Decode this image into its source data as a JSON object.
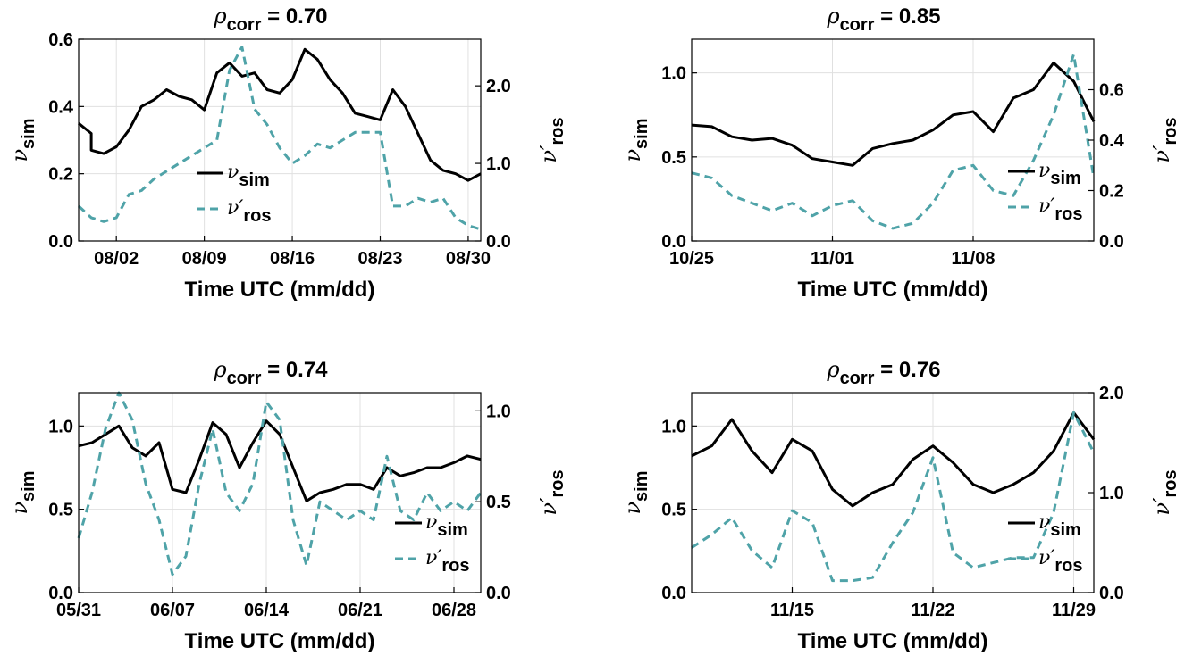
{
  "chart_data": [
    {
      "type": "line",
      "title": {
        "symbol": "ρ",
        "sub": "corr",
        "text": " = 0.70"
      },
      "xlabel": "Time UTC (mm/dd)",
      "xlim": [
        "07/30",
        "08/31"
      ],
      "xticks": [
        {
          "date": "08/02",
          "label": "08/02"
        },
        {
          "date": "08/09",
          "label": "08/09"
        },
        {
          "date": "08/16",
          "label": "08/16"
        },
        {
          "date": "08/23",
          "label": "08/23"
        },
        {
          "date": "08/30",
          "label": "08/30"
        }
      ],
      "ylabel_left": {
        "symbol": "ν",
        "sub": "sim"
      },
      "ylim_left": [
        0,
        0.6
      ],
      "yticks_left": [
        0,
        0.2,
        0.4,
        0.6
      ],
      "yticklabels_left": [
        "0.0",
        "0.2",
        "0.4",
        "0.6"
      ],
      "ylabel_right": {
        "symbol": "ν′",
        "sub": "ros"
      },
      "ylim_right": [
        0,
        2.6
      ],
      "yticks_right": [
        0,
        1,
        2
      ],
      "yticklabels_right": [
        "0.0",
        "1.0",
        "2.0"
      ],
      "grid": true,
      "legend": "center-bottom",
      "series": [
        {
          "name": "sim",
          "axis": "left",
          "color": "#000000",
          "style": "solid",
          "x": [
            "07/30",
            "07/31",
            "07/31",
            "08/01",
            "08/02",
            "08/03",
            "08/04",
            "08/05",
            "08/06",
            "08/07",
            "08/08",
            "08/09",
            "08/10",
            "08/11",
            "08/12",
            "08/13",
            "08/14",
            "08/15",
            "08/16",
            "08/17",
            "08/18",
            "08/19",
            "08/20",
            "08/21",
            "08/22",
            "08/23",
            "08/24",
            "08/25",
            "08/26",
            "08/27",
            "08/28",
            "08/29",
            "08/30",
            "08/31"
          ],
          "y": [
            0.35,
            0.32,
            0.27,
            0.26,
            0.28,
            0.33,
            0.4,
            0.42,
            0.45,
            0.43,
            0.42,
            0.39,
            0.5,
            0.53,
            0.49,
            0.5,
            0.45,
            0.44,
            0.48,
            0.57,
            0.54,
            0.48,
            0.44,
            0.38,
            0.37,
            0.36,
            0.45,
            0.4,
            0.32,
            0.24,
            0.21,
            0.2,
            0.18,
            0.2
          ]
        },
        {
          "name": "ros",
          "axis": "right",
          "color": "#4fa3a8",
          "style": "dashed",
          "x": [
            "07/30",
            "07/31",
            "08/01",
            "08/02",
            "08/03",
            "08/04",
            "08/05",
            "08/06",
            "08/07",
            "08/08",
            "08/09",
            "08/10",
            "08/11",
            "08/12",
            "08/13",
            "08/14",
            "08/15",
            "08/16",
            "08/17",
            "08/18",
            "08/19",
            "08/20",
            "08/21",
            "08/22",
            "08/23",
            "08/24",
            "08/25",
            "08/26",
            "08/27",
            "08/28",
            "08/29",
            "08/30",
            "08/31"
          ],
          "y": [
            0.45,
            0.3,
            0.25,
            0.3,
            0.6,
            0.65,
            0.8,
            0.9,
            1.0,
            1.1,
            1.2,
            1.3,
            2.2,
            2.5,
            1.7,
            1.5,
            1.2,
            1.0,
            1.1,
            1.25,
            1.2,
            1.3,
            1.4,
            1.4,
            1.4,
            0.45,
            0.45,
            0.55,
            0.5,
            0.55,
            0.3,
            0.2,
            0.15
          ]
        }
      ]
    },
    {
      "type": "line",
      "title": {
        "symbol": "ρ",
        "sub": "corr",
        "text": " = 0.85"
      },
      "xlabel": "Time UTC (mm/dd)",
      "xlim": [
        "10/25",
        "11/14"
      ],
      "xticks": [
        {
          "date": "10/25",
          "label": "10/25"
        },
        {
          "date": "11/01",
          "label": "11/01"
        },
        {
          "date": "11/08",
          "label": "11/08"
        }
      ],
      "ylabel_left": {
        "symbol": "ν",
        "sub": "sim"
      },
      "ylim_left": [
        0,
        1.2
      ],
      "yticks_left": [
        0,
        0.5,
        1.0
      ],
      "yticklabels_left": [
        "0.0",
        "0.5",
        "1.0"
      ],
      "ylabel_right": {
        "symbol": "ν′",
        "sub": "ros"
      },
      "ylim_right": [
        0,
        0.8
      ],
      "yticks_right": [
        0,
        0.2,
        0.4,
        0.6
      ],
      "yticklabels_right": [
        "0.0",
        "0.2",
        "0.4",
        "0.6"
      ],
      "grid": true,
      "legend": "right",
      "series": [
        {
          "name": "sim",
          "axis": "left",
          "color": "#000000",
          "style": "solid",
          "x": [
            "10/25",
            "10/26",
            "10/27",
            "10/28",
            "10/29",
            "10/30",
            "10/31",
            "11/01",
            "11/02",
            "11/03",
            "11/04",
            "11/05",
            "11/06",
            "11/07",
            "11/08",
            "11/09",
            "11/10",
            "11/11",
            "11/12",
            "11/13",
            "11/14"
          ],
          "y": [
            0.69,
            0.68,
            0.62,
            0.6,
            0.61,
            0.57,
            0.49,
            0.47,
            0.45,
            0.55,
            0.58,
            0.6,
            0.66,
            0.75,
            0.77,
            0.65,
            0.85,
            0.9,
            1.06,
            0.95,
            0.71
          ]
        },
        {
          "name": "ros",
          "axis": "right",
          "color": "#4fa3a8",
          "style": "dashed",
          "x": [
            "10/25",
            "10/26",
            "10/27",
            "10/28",
            "10/29",
            "10/30",
            "10/31",
            "11/01",
            "11/02",
            "11/03",
            "11/04",
            "11/05",
            "11/06",
            "11/07",
            "11/08",
            "11/09",
            "11/10",
            "11/11",
            "11/12",
            "11/13",
            "11/14"
          ],
          "y": [
            0.27,
            0.25,
            0.18,
            0.15,
            0.12,
            0.15,
            0.1,
            0.14,
            0.16,
            0.08,
            0.05,
            0.07,
            0.15,
            0.28,
            0.3,
            0.2,
            0.18,
            0.32,
            0.5,
            0.74,
            0.25
          ]
        }
      ]
    },
    {
      "type": "line",
      "title": {
        "symbol": "ρ",
        "sub": "corr",
        "text": " = 0.74"
      },
      "xlabel": "Time UTC (mm/dd)",
      "xlim": [
        "05/31",
        "06/30"
      ],
      "xticks": [
        {
          "date": "05/31",
          "label": "05/31"
        },
        {
          "date": "06/07",
          "label": "06/07"
        },
        {
          "date": "06/14",
          "label": "06/14"
        },
        {
          "date": "06/21",
          "label": "06/21"
        },
        {
          "date": "06/28",
          "label": "06/28"
        }
      ],
      "ylabel_left": {
        "symbol": "ν",
        "sub": "sim"
      },
      "ylim_left": [
        0,
        1.2
      ],
      "yticks_left": [
        0,
        0.5,
        1.0
      ],
      "yticklabels_left": [
        "0.0",
        "0.5",
        "1.0"
      ],
      "ylabel_right": {
        "symbol": "ν′",
        "sub": "ros"
      },
      "ylim_right": [
        0,
        1.1
      ],
      "yticks_right": [
        0,
        0.5,
        1.0
      ],
      "yticklabels_right": [
        "0.0",
        "0.5",
        "1.0"
      ],
      "grid": true,
      "legend": "right",
      "series": [
        {
          "name": "sim",
          "axis": "left",
          "color": "#000000",
          "style": "solid",
          "x": [
            "05/31",
            "06/01",
            "06/02",
            "06/03",
            "06/04",
            "06/05",
            "06/06",
            "06/07",
            "06/08",
            "06/09",
            "06/10",
            "06/11",
            "06/12",
            "06/13",
            "06/14",
            "06/15",
            "06/16",
            "06/17",
            "06/18",
            "06/19",
            "06/20",
            "06/21",
            "06/22",
            "06/23",
            "06/24",
            "06/25",
            "06/26",
            "06/27",
            "06/28",
            "06/29",
            "06/30"
          ],
          "y": [
            0.88,
            0.9,
            0.95,
            1.0,
            0.87,
            0.82,
            0.9,
            0.62,
            0.6,
            0.8,
            1.02,
            0.95,
            0.75,
            0.9,
            1.03,
            0.95,
            0.75,
            0.55,
            0.6,
            0.62,
            0.65,
            0.65,
            0.62,
            0.75,
            0.7,
            0.72,
            0.75,
            0.75,
            0.78,
            0.82,
            0.8
          ]
        },
        {
          "name": "ros",
          "axis": "right",
          "color": "#4fa3a8",
          "style": "dashed",
          "x": [
            "05/31",
            "06/01",
            "06/02",
            "06/03",
            "06/04",
            "06/05",
            "06/06",
            "06/07",
            "06/08",
            "06/09",
            "06/10",
            "06/11",
            "06/12",
            "06/13",
            "06/14",
            "06/15",
            "06/16",
            "06/17",
            "06/18",
            "06/19",
            "06/20",
            "06/21",
            "06/22",
            "06/23",
            "06/24",
            "06/25",
            "06/26",
            "06/27",
            "06/28",
            "06/29",
            "06/30"
          ],
          "y": [
            0.3,
            0.55,
            0.9,
            1.1,
            0.95,
            0.6,
            0.4,
            0.1,
            0.2,
            0.6,
            0.9,
            0.55,
            0.45,
            0.6,
            1.05,
            0.95,
            0.4,
            0.15,
            0.5,
            0.45,
            0.4,
            0.45,
            0.4,
            0.75,
            0.45,
            0.4,
            0.55,
            0.45,
            0.5,
            0.45,
            0.55
          ]
        }
      ]
    },
    {
      "type": "line",
      "title": {
        "symbol": "ρ",
        "sub": "corr",
        "text": " = 0.76"
      },
      "xlabel": "Time UTC (mm/dd)",
      "xlim": [
        "11/10",
        "11/30"
      ],
      "xticks": [
        {
          "date": "11/15",
          "label": "11/15"
        },
        {
          "date": "11/22",
          "label": "11/22"
        },
        {
          "date": "11/29",
          "label": "11/29"
        }
      ],
      "ylabel_left": {
        "symbol": "ν",
        "sub": "sim"
      },
      "ylim_left": [
        0,
        1.2
      ],
      "yticks_left": [
        0,
        0.5,
        1.0
      ],
      "yticklabels_left": [
        "0.0",
        "0.5",
        "1.0"
      ],
      "ylabel_right": {
        "symbol": "ν′",
        "sub": "ros"
      },
      "ylim_right": [
        0,
        2.0
      ],
      "yticks_right": [
        0,
        1,
        2
      ],
      "yticklabels_right": [
        "0.0",
        "1.0",
        "2.0"
      ],
      "grid": true,
      "legend": "right",
      "series": [
        {
          "name": "sim",
          "axis": "left",
          "color": "#000000",
          "style": "solid",
          "x": [
            "11/10",
            "11/11",
            "11/12",
            "11/13",
            "11/14",
            "11/15",
            "11/16",
            "11/17",
            "11/18",
            "11/19",
            "11/20",
            "11/21",
            "11/22",
            "11/23",
            "11/24",
            "11/25",
            "11/26",
            "11/27",
            "11/28",
            "11/29",
            "11/30"
          ],
          "y": [
            0.82,
            0.88,
            1.04,
            0.85,
            0.72,
            0.92,
            0.85,
            0.62,
            0.52,
            0.6,
            0.65,
            0.8,
            0.88,
            0.78,
            0.65,
            0.6,
            0.65,
            0.72,
            0.85,
            1.08,
            0.92
          ]
        },
        {
          "name": "ros",
          "axis": "right",
          "color": "#4fa3a8",
          "style": "dashed",
          "x": [
            "11/10",
            "11/11",
            "11/12",
            "11/13",
            "11/14",
            "11/15",
            "11/16",
            "11/17",
            "11/18",
            "11/19",
            "11/20",
            "11/21",
            "11/22",
            "11/23",
            "11/24",
            "11/25",
            "11/26",
            "11/27",
            "11/28",
            "11/29",
            "11/30"
          ],
          "y": [
            0.45,
            0.58,
            0.75,
            0.42,
            0.25,
            0.82,
            0.7,
            0.12,
            0.12,
            0.15,
            0.5,
            0.8,
            1.35,
            0.4,
            0.25,
            0.3,
            0.35,
            0.35,
            0.8,
            1.8,
            1.4
          ]
        }
      ]
    }
  ]
}
